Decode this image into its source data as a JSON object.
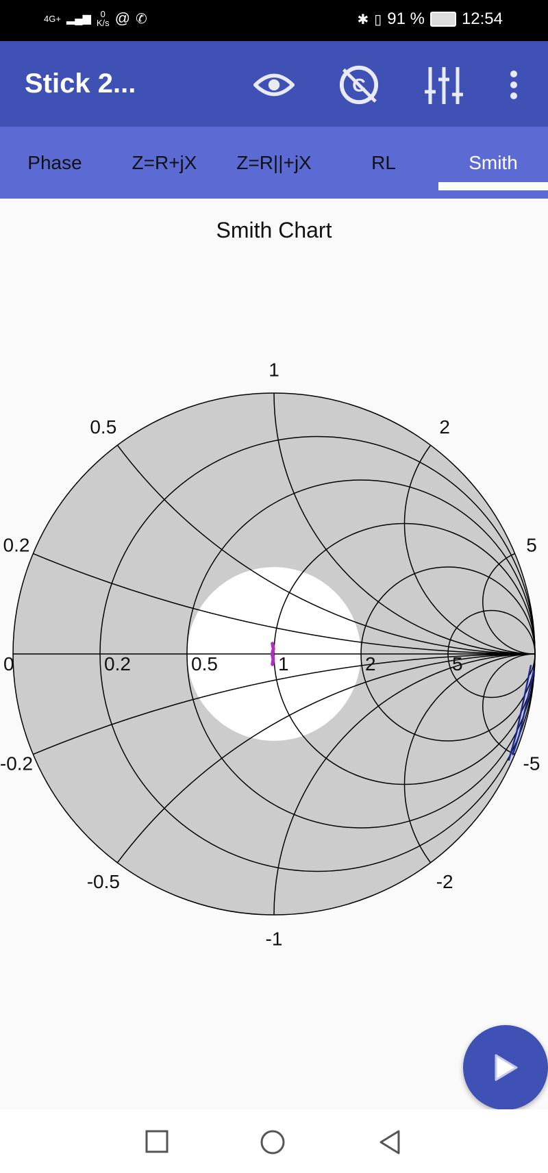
{
  "status_bar": {
    "network": "4G+",
    "speed_value": "0",
    "speed_unit": "K/s",
    "battery": "91 %",
    "time": "12:54"
  },
  "toolbar": {
    "title": "Stick 2...",
    "icons": [
      "eye-icon",
      "no-camera-icon",
      "sliders-icon",
      "more-vert-icon"
    ],
    "color": "#3f51b5"
  },
  "tabs": [
    {
      "label": "Phase",
      "selected": false
    },
    {
      "label": "Z=R+jX",
      "selected": false
    },
    {
      "label": "Z=R||+jX",
      "selected": false
    },
    {
      "label": "RL",
      "selected": false
    },
    {
      "label": "Smith",
      "selected": true
    }
  ],
  "chart_data": {
    "type": "smith",
    "title": "Smith Chart",
    "resistance_circles": [
      0,
      0.2,
      0.5,
      1,
      2,
      5
    ],
    "resistance_labels": [
      "0",
      "0.2",
      "0.5",
      "1",
      "2",
      "5"
    ],
    "reactance_arcs": [
      0.2,
      0.5,
      1,
      2,
      5,
      -0.2,
      -0.5,
      -1,
      -2,
      -5
    ],
    "reactance_labels": [
      "0.2",
      "0.5",
      "1",
      "2",
      "5",
      "-0.2",
      "-0.5",
      "-1",
      "-2",
      "-5"
    ],
    "highlight_vswr_circle_gamma": 0.333,
    "colors": {
      "background": "#cccccc",
      "highlight": "#ffffff",
      "grid": "#000000"
    },
    "series": [
      {
        "color": "#b030c0",
        "gamma": [
          [
            -0.006,
            0.04
          ],
          [
            -0.002,
            0.02
          ],
          [
            -0.007,
            0.0
          ],
          [
            -0.003,
            -0.02
          ],
          [
            -0.006,
            -0.04
          ]
        ]
      },
      {
        "color": "#1a2a9a",
        "gamma": [
          [
            0.984,
            -0.045
          ],
          [
            0.96,
            -0.16
          ],
          [
            0.93,
            -0.3
          ],
          [
            0.9,
            -0.406
          ]
        ]
      },
      {
        "color": "#1a2a9a",
        "gamma": [
          [
            0.995,
            -0.065
          ],
          [
            0.97,
            -0.18
          ],
          [
            0.94,
            -0.31
          ],
          [
            0.915,
            -0.385
          ]
        ]
      }
    ]
  },
  "fab": {
    "icon": "play-icon"
  },
  "nav": {
    "icons": [
      "recents-icon",
      "home-icon",
      "back-icon"
    ]
  }
}
